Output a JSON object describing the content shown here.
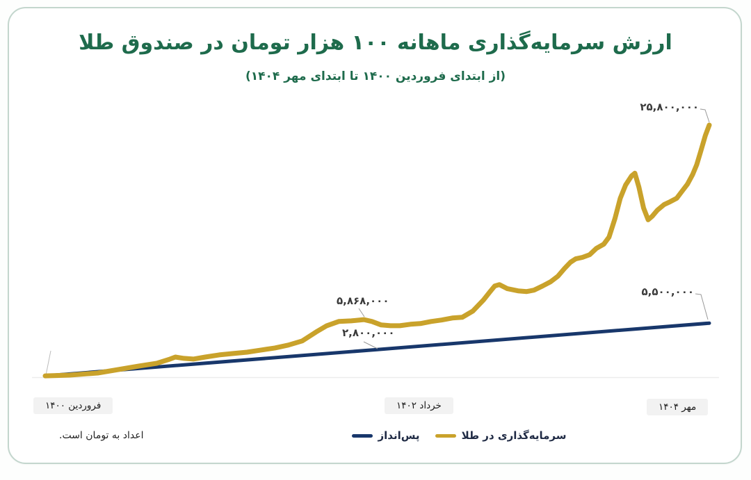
{
  "page": {
    "title": "ارزش سرمایه‌گذاری ماهانه ۱۰۰ هزار تومان در صندوق طلا",
    "subtitle": "(از ابتدای فروردین ۱۴۰۰ تا ابتدای مهر ۱۴۰۴)",
    "note": "اعداد به تومان است."
  },
  "colors": {
    "title_green": "#1E6B4C",
    "gold": "#C9A22B",
    "navy": "#18376B",
    "card_border": "#C3D6CD",
    "xlabel_bg": "#F2F2F2",
    "annotation_text": "#3b3b3b"
  },
  "annotations": {
    "gold_end": "۲۵,۸۰۰,۰۰۰",
    "gold_mid": "۵,۸۶۸,۰۰۰",
    "savings_mid": "۲,۸۰۰,۰۰۰",
    "savings_end": "۵,۵۰۰,۰۰۰"
  },
  "x_labels": [
    {
      "label": "فروردین ۱۴۰۰"
    },
    {
      "label": "خرداد ۱۴۰۲"
    },
    {
      "label": "مهر ۱۴۰۴"
    }
  ],
  "legend": [
    {
      "label": "سرمایه‌گذاری در طلا",
      "color": "#C9A22B"
    },
    {
      "label": "پس‌انداز",
      "color": "#18376B"
    }
  ],
  "chart_data": {
    "type": "line",
    "title": "ارزش سرمایه‌گذاری ماهانه ۱۰۰ هزار تومان در صندوق طلا",
    "subtitle": "(از ابتدای فروردین ۱۴۰۰ تا ابتدای مهر ۱۴۰۴)",
    "unit": "تومان",
    "xlabel_ticks": [
      "فروردین ۱۴۰۰",
      "خرداد ۱۴۰۲",
      "مهر ۱۴۰۴"
    ],
    "value_max": 25800000,
    "grid": false,
    "legend_position": "bottom-center",
    "labeled_points": [
      {
        "series": "سرمایه‌گذاری در طلا",
        "x": "خرداد ۱۴۰۲",
        "value": 5868000,
        "label": "۵,۸۶۸,۰۰۰"
      },
      {
        "series": "سرمایه‌گذاری در طلا",
        "x": "مهر ۱۴۰۴",
        "value": 25800000,
        "label": "۲۵,۸۰۰,۰۰۰"
      },
      {
        "series": "پس‌انداز",
        "x": "خرداد ۱۴۰۲",
        "value": 2800000,
        "label": "۲,۸۰۰,۰۰۰"
      },
      {
        "series": "پس‌انداز",
        "x": "مهر ۱۴۰۴",
        "value": 5500000,
        "label": "۵,۵۰۰,۰۰۰"
      }
    ],
    "series": [
      {
        "name": "پس‌انداز",
        "key": "savings",
        "color": "#18376B",
        "points": [
          [
            0.0,
            100000
          ],
          [
            0.5,
            2800000
          ],
          [
            1.0,
            5500000
          ]
        ]
      },
      {
        "name": "سرمایه‌گذاری در طلا",
        "key": "gold",
        "color": "#C9A22B",
        "points": [
          [
            0.0,
            100000
          ],
          [
            0.037,
            180000
          ],
          [
            0.079,
            390000
          ],
          [
            0.11,
            750000
          ],
          [
            0.141,
            1100000
          ],
          [
            0.168,
            1390000
          ],
          [
            0.188,
            1820000
          ],
          [
            0.196,
            2030000
          ],
          [
            0.209,
            1890000
          ],
          [
            0.223,
            1820000
          ],
          [
            0.241,
            2030000
          ],
          [
            0.262,
            2250000
          ],
          [
            0.283,
            2390000
          ],
          [
            0.304,
            2530000
          ],
          [
            0.325,
            2750000
          ],
          [
            0.346,
            2960000
          ],
          [
            0.366,
            3250000
          ],
          [
            0.387,
            3680000
          ],
          [
            0.408,
            4600000
          ],
          [
            0.424,
            5240000
          ],
          [
            0.442,
            5670000
          ],
          [
            0.461,
            5740000
          ],
          [
            0.48,
            5868000
          ],
          [
            0.492,
            5670000
          ],
          [
            0.506,
            5320000
          ],
          [
            0.52,
            5240000
          ],
          [
            0.534,
            5240000
          ],
          [
            0.55,
            5390000
          ],
          [
            0.565,
            5460000
          ],
          [
            0.581,
            5670000
          ],
          [
            0.597,
            5820000
          ],
          [
            0.613,
            6030000
          ],
          [
            0.628,
            6100000
          ],
          [
            0.644,
            6740000
          ],
          [
            0.66,
            7880000
          ],
          [
            0.67,
            8740000
          ],
          [
            0.677,
            9310000
          ],
          [
            0.684,
            9450000
          ],
          [
            0.696,
            9030000
          ],
          [
            0.712,
            8810000
          ],
          [
            0.725,
            8740000
          ],
          [
            0.736,
            8880000
          ],
          [
            0.749,
            9310000
          ],
          [
            0.761,
            9740000
          ],
          [
            0.772,
            10310000
          ],
          [
            0.782,
            11100000
          ],
          [
            0.791,
            11740000
          ],
          [
            0.799,
            12090000
          ],
          [
            0.809,
            12240000
          ],
          [
            0.82,
            12520000
          ],
          [
            0.83,
            13160000
          ],
          [
            0.841,
            13590000
          ],
          [
            0.849,
            14310000
          ],
          [
            0.858,
            16230000
          ],
          [
            0.866,
            18300000
          ],
          [
            0.874,
            19660000
          ],
          [
            0.883,
            20590000
          ],
          [
            0.888,
            20870000
          ],
          [
            0.894,
            19440000
          ],
          [
            0.901,
            17300000
          ],
          [
            0.908,
            16090000
          ],
          [
            0.914,
            16450000
          ],
          [
            0.922,
            17090000
          ],
          [
            0.932,
            17660000
          ],
          [
            0.941,
            17940000
          ],
          [
            0.951,
            18300000
          ],
          [
            0.959,
            19020000
          ],
          [
            0.967,
            19730000
          ],
          [
            0.975,
            20730000
          ],
          [
            0.981,
            21730000
          ],
          [
            0.987,
            23080000
          ],
          [
            0.994,
            24720000
          ],
          [
            1.0,
            25800000
          ]
        ]
      }
    ]
  }
}
